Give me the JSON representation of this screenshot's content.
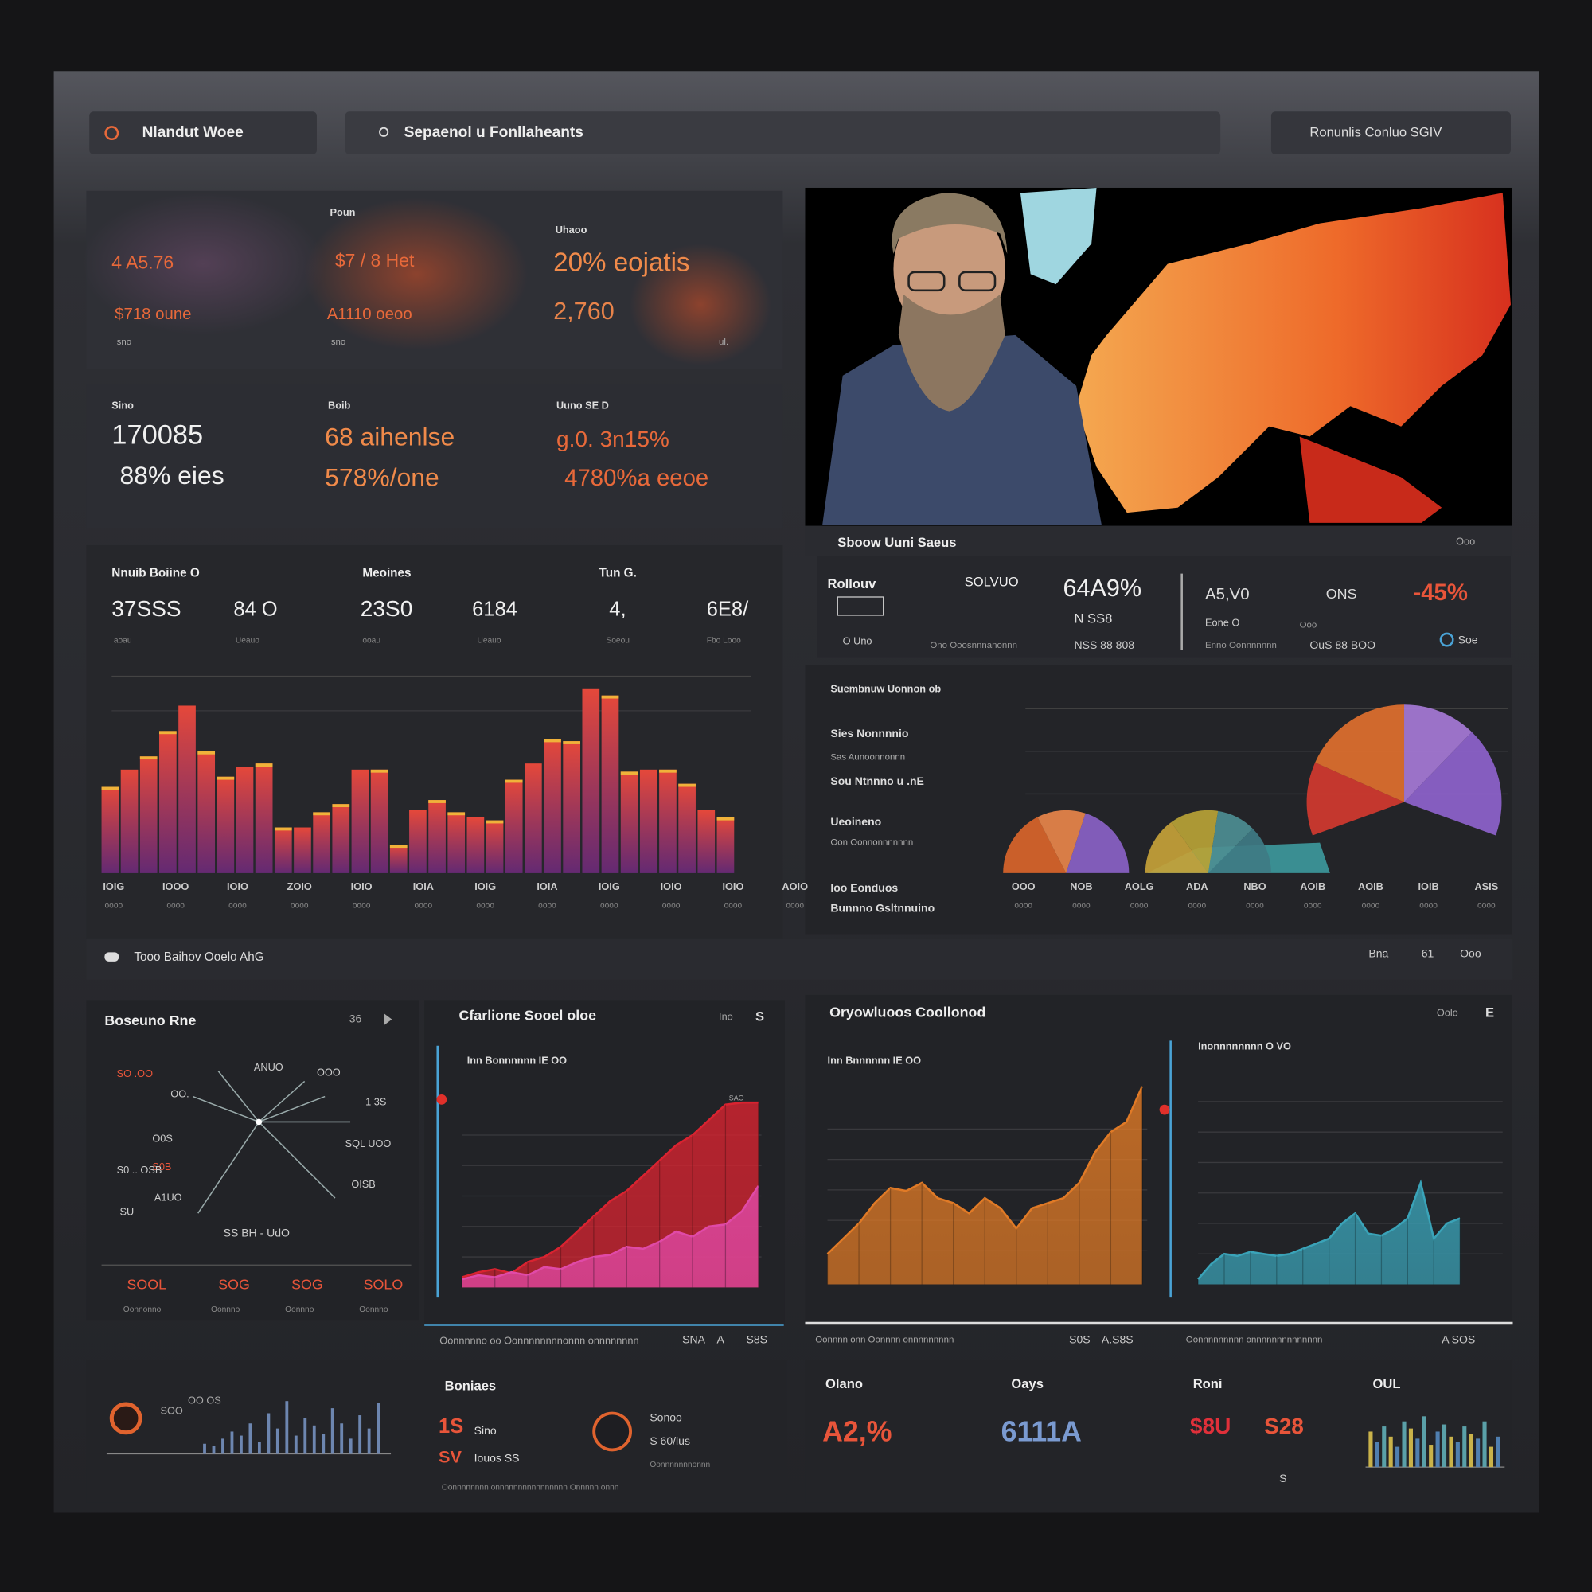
{
  "header": {
    "brand": "Nlandut Woee",
    "search": "Sepaenol u Fonllaheants",
    "account": "Ronunlis Conluo SGIV"
  },
  "kpi_top": [
    "Poun",
    "Uhaoo",
    "4 A5.76",
    "$7 / 8 Het",
    "20% eojatis",
    "$718 oune",
    "A1110 oeoo",
    "2,760",
    "sno",
    "sno",
    "ul."
  ],
  "kpi_mid": [
    "Sino",
    "Boib",
    "Uuno SE D",
    "170085",
    "68 aihenlse",
    "g.0. 3n15%",
    "88% eies",
    "578%/one",
    "4780%a eeoe"
  ],
  "bar_panel": [
    "Nnuib Boiine O",
    "Meoines",
    "Tun G.",
    "37SSS",
    "84 O",
    "23S0",
    "6184",
    "4,",
    "6E8/",
    "aoau",
    "Ueauo",
    "ooau",
    "Ueauo",
    "Soeou",
    "Fbo Looo"
  ],
  "bar_xlabels": [
    "IOIG",
    "IOOO",
    "IOIO",
    "ZOIO",
    "IOIO",
    "IOIA",
    "IOIG",
    "IOIA",
    "IOIG",
    "IOIO",
    "IOIO",
    "AOIO"
  ],
  "bar_xsub": [
    "oooo",
    "oooo",
    "oooo",
    "oooo",
    "oooo",
    "oooo",
    "oooo",
    "oooo",
    "oooo",
    "oooo",
    "oooo",
    "oooo"
  ],
  "stats": [
    "Rollouv",
    "SOLVUO",
    "64A9%",
    "N SS8",
    "A5,V0",
    "ONS",
    "-45%",
    "O Uno",
    "Ono Ooosnnnanonnn",
    "NSS 88 808",
    "Eone O",
    "Enno Oonnnnnnn",
    "OuS 88 BOO",
    "Soe",
    "Ooo"
  ],
  "image_caption": [
    "Sboow Uuni Saeus",
    "Ooo"
  ],
  "pie_panel": [
    "Suembnuw Uonnon ob",
    "Sies Nonnnnio",
    "Sas Aunoonnonnn",
    "Sou Ntnnno u .nE",
    "Ueoineno",
    "Oon Oonnonnnnnnn",
    "Ioo Eonduos",
    "Bunnno Gsltnnuino"
  ],
  "pie_xlabels": [
    "OOO",
    "NOB",
    "AOLG",
    "ADA",
    "NBO",
    "AOIB",
    "AOIB",
    "IOIB",
    "ASIS"
  ],
  "pie_xsub": [
    "oooo",
    "oooo",
    "oooo",
    "oooo",
    "oooo",
    "oooo",
    "oooo",
    "oooo",
    "oooo"
  ],
  "section": [
    "Tooo Baihov Ooelo AhG",
    "Bna",
    "61",
    "Ooo"
  ],
  "radial_panel": [
    "Boseuno Rne",
    "36",
    "SO .OO",
    "ANUO",
    "OOO",
    "OO.",
    "1 3S",
    "O0S",
    "S0B",
    "SQL UOO",
    "S0 .. OSB",
    "OISB",
    "A1UO",
    "SU",
    "SS BH - UdO",
    "SOOL",
    "SOG",
    "SOG",
    "SOLO",
    "Oonnonno",
    "Oonnno",
    "Oonnno",
    "Oonnno"
  ],
  "area_panel": [
    "Cfarlione Sooel oloe",
    "Ino",
    "S",
    "Inn Bonnnnnn IE OO",
    "SAO",
    "Oonnnnno oo Oonnnnnnnnonnn onnnnnnnn",
    "SNA",
    "A",
    "S8S"
  ],
  "growth_panel": [
    "Oryowluoos Coollonod",
    "Oolo",
    "E",
    "Inn Bnnnnnn IE OO",
    "Inonnnnnnnn O VO",
    "Oonnnn onn Oonnnn onnnnnnnnn",
    "S0S",
    "A.S8S",
    "Oonnnnnnnnn onnnnnnnnnnnnnn",
    "A SOS"
  ],
  "bottom": [
    "SOO",
    "OO OS",
    "Boniaes",
    "1S",
    "Sino",
    "SV",
    "Iouos SS",
    "Sonoo",
    "S 60/lus",
    "Oonnnnnnnonnn",
    "Oonnnnnnnn onnnnnnnnnnnnnnnn Onnnnn onnn",
    "Olano",
    "Oays",
    "Roni",
    "OUL",
    "A2,%",
    "6111A",
    "$8U",
    "S28",
    "S"
  ],
  "chart_data": [
    {
      "type": "bar",
      "ylim": [
        0,
        200
      ],
      "values": [
        85,
        102,
        115,
        140,
        165,
        120,
        95,
        105,
        108,
        45,
        45,
        60,
        68,
        102,
        102,
        28,
        62,
        72,
        60,
        55,
        52,
        92,
        108,
        132,
        130,
        182,
        175,
        100,
        102,
        102,
        88,
        62,
        55
      ],
      "colors": [
        "#e5483a",
        "#6b2a7a"
      ]
    },
    {
      "type": "pie",
      "series": [
        {
          "values": [
            35,
            25,
            40
          ],
          "colors": [
            "#d9652a",
            "#e8864a",
            "#8a62c6"
          ]
        },
        {
          "values": [
            30,
            25,
            20,
            25
          ],
          "colors": [
            "#c6a238",
            "#b8a336",
            "#4d8e93",
            "#3f7b84"
          ]
        },
        {
          "values": [
            20,
            30,
            20,
            30
          ],
          "colors": [
            "#d33a2f",
            "#e0702e",
            "#a679d6",
            "#8e63cc"
          ]
        }
      ]
    },
    {
      "type": "area",
      "ylim": [
        0,
        200
      ],
      "series": [
        {
          "color": "#d92330",
          "values": [
            10,
            15,
            18,
            14,
            25,
            30,
            40,
            55,
            70,
            85,
            95,
            110,
            125,
            140,
            150,
            165,
            180,
            182,
            182
          ]
        },
        {
          "color": "#e04aa8",
          "values": [
            8,
            12,
            10,
            15,
            12,
            20,
            18,
            25,
            30,
            32,
            40,
            38,
            45,
            55,
            50,
            60,
            62,
            75,
            100
          ]
        }
      ]
    },
    {
      "type": "area",
      "ylim": [
        0,
        200
      ],
      "series": [
        {
          "color": "#e07a26",
          "values": [
            30,
            45,
            60,
            80,
            95,
            92,
            100,
            85,
            80,
            70,
            85,
            75,
            55,
            75,
            80,
            85,
            100,
            130,
            150,
            160,
            195
          ]
        }
      ]
    },
    {
      "type": "area",
      "ylim": [
        0,
        200
      ],
      "series": [
        {
          "color": "#3aa3b8",
          "values": [
            5,
            20,
            30,
            28,
            32,
            30,
            28,
            30,
            35,
            40,
            45,
            60,
            70,
            50,
            48,
            55,
            65,
            100,
            45,
            60,
            65
          ]
        }
      ]
    },
    {
      "type": "bar",
      "ylim": [
        0,
        60
      ],
      "colors": [
        "#6d86b0"
      ],
      "values": [
        10,
        8,
        15,
        22,
        18,
        30,
        12,
        40,
        25,
        52,
        18,
        35,
        28,
        20,
        45,
        30,
        15,
        38,
        25,
        50
      ]
    },
    {
      "type": "bar",
      "ylim": [
        0,
        60
      ],
      "colors": [
        "#c9b24a",
        "#4f7fb0",
        "#5aa0a8"
      ],
      "values": [
        35,
        25,
        40,
        30,
        20,
        45,
        38,
        28,
        50,
        22,
        35,
        42,
        30,
        25,
        40,
        33,
        28,
        45,
        20,
        30
      ]
    }
  ]
}
